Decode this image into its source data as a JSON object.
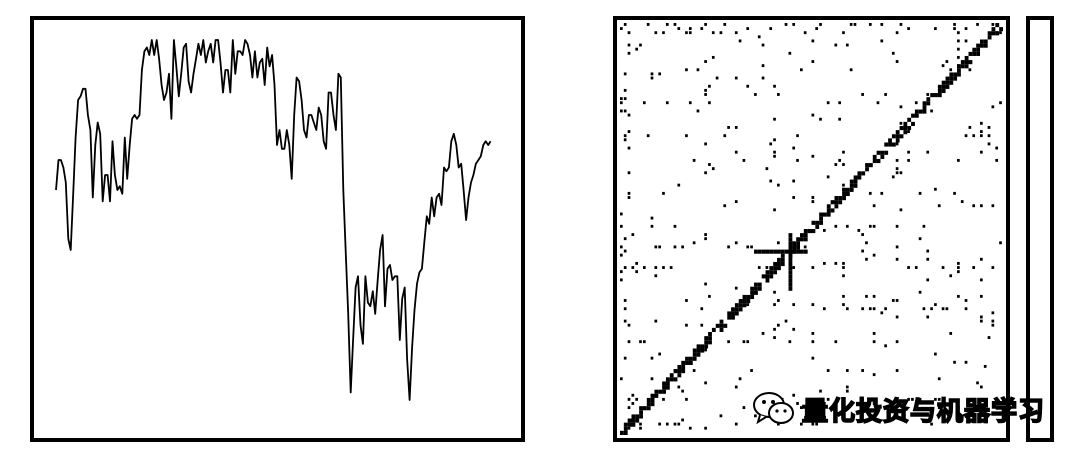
{
  "chart_data": [
    {
      "type": "line",
      "title": "",
      "xlabel": "",
      "ylabel": "",
      "grid": false,
      "xlim": [
        0,
        180
      ],
      "ylim": [
        0,
        1
      ],
      "x_step": 1,
      "series": [
        {
          "values": [
            0.6,
            0.68,
            0.68,
            0.66,
            0.62,
            0.47,
            0.44,
            0.59,
            0.74,
            0.84,
            0.85,
            0.87,
            0.87,
            0.8,
            0.76,
            0.58,
            0.72,
            0.78,
            0.75,
            0.57,
            0.64,
            0.64,
            0.57,
            0.73,
            0.64,
            0.6,
            0.61,
            0.59,
            0.74,
            0.63,
            0.72,
            0.79,
            0.8,
            0.79,
            0.8,
            0.92,
            0.97,
            0.98,
            0.96,
            1.0,
            0.96,
            1.0,
            0.95,
            0.88,
            0.84,
            0.86,
            0.91,
            0.79,
            1.0,
            0.93,
            0.85,
            0.91,
            0.98,
            0.99,
            0.89,
            0.86,
            0.91,
            0.95,
            0.99,
            0.96,
            1.0,
            0.94,
            0.97,
            0.99,
            0.94,
            1.0,
            1.0,
            0.94,
            0.86,
            0.92,
            0.92,
            0.86,
            1.0,
            0.91,
            0.97,
            0.97,
            0.96,
            1.0,
            0.99,
            0.96,
            0.9,
            0.97,
            0.9,
            0.94,
            0.95,
            0.88,
            0.98,
            0.93,
            0.96,
            0.88,
            0.72,
            0.76,
            0.71,
            0.71,
            0.76,
            0.72,
            0.63,
            0.8,
            0.9,
            0.89,
            0.84,
            0.76,
            0.74,
            0.8,
            0.8,
            0.78,
            0.76,
            0.82,
            0.8,
            0.73,
            0.71,
            0.86,
            0.86,
            0.8,
            0.76,
            0.91,
            0.9,
            0.6,
            0.43,
            0.27,
            0.06,
            0.2,
            0.34,
            0.37,
            0.24,
            0.19,
            0.37,
            0.3,
            0.29,
            0.33,
            0.27,
            0.36,
            0.44,
            0.48,
            0.29,
            0.39,
            0.4,
            0.36,
            0.37,
            0.37,
            0.2,
            0.31,
            0.34,
            0.15,
            0.04,
            0.18,
            0.28,
            0.35,
            0.38,
            0.39,
            0.46,
            0.53,
            0.51,
            0.58,
            0.53,
            0.58,
            0.59,
            0.56,
            0.66,
            0.65,
            0.66,
            0.73,
            0.75,
            0.72,
            0.66,
            0.67,
            0.6,
            0.52,
            0.58,
            0.62,
            0.64,
            0.67,
            0.68,
            0.69,
            0.72,
            0.73,
            0.72,
            0.73
          ]
        }
      ]
    },
    {
      "type": "heatmap",
      "title": "",
      "xlabel": "",
      "ylabel": "",
      "matrix_size": 100,
      "grid": false,
      "colorbar": true,
      "description_values": {
        "diagonal": "dense",
        "off_diagonal": "sparse"
      }
    }
  ],
  "watermark": {
    "text": "量化投资与机器学习",
    "icon": "wechat-icon"
  }
}
